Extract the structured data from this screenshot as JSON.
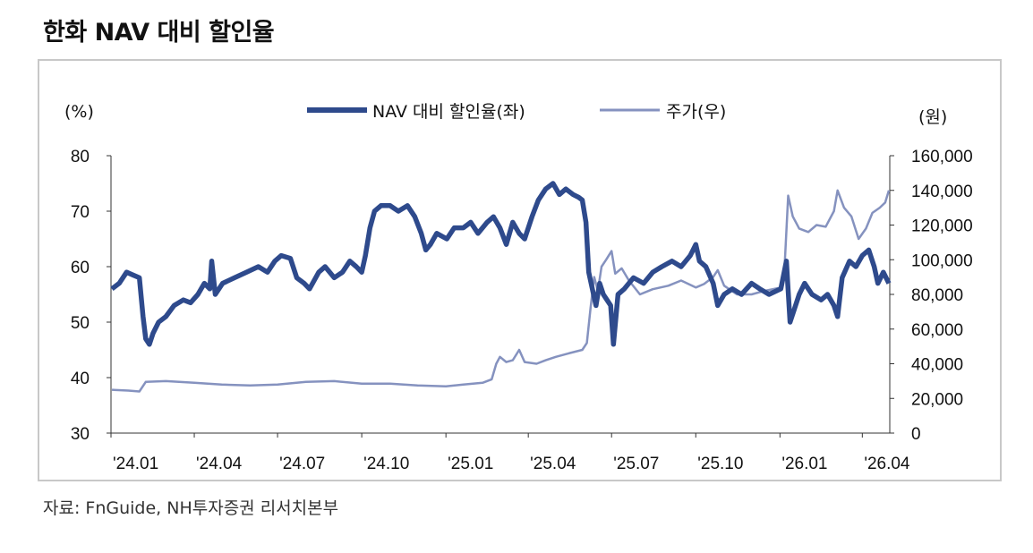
{
  "title": "한화 NAV 대비 할인율",
  "source": "자료: FnGuide, NH투자증권 리서치본부",
  "chart_data": {
    "type": "line",
    "left_axis_unit": "(%)",
    "right_axis_unit": "(원)",
    "left_ylim": [
      30,
      80
    ],
    "right_ylim": [
      0,
      160000
    ],
    "left_ticks": [
      "80",
      "70",
      "60",
      "50",
      "40",
      "30"
    ],
    "right_ticks": [
      "160,000",
      "140,000",
      "120,000",
      "100,000",
      "80,000",
      "60,000",
      "40,000",
      "20,000",
      "0"
    ],
    "x_ticks": [
      "'24.01",
      "'24.04",
      "'24.07",
      "'24.10",
      "'25.01",
      "'25.04",
      "'25.07",
      "'25.10",
      "'26.01",
      "'26.04"
    ],
    "x_range": [
      "2024-01",
      "2026-05"
    ],
    "legend_position": "top-center",
    "colors": {
      "discount": "#2e4a8c",
      "price": "#8592bf"
    },
    "series": [
      {
        "name": "NAV 대비 할인율(좌)",
        "axis": "left",
        "points": [
          [
            "2024-01-02",
            56
          ],
          [
            "2024-01-10",
            57
          ],
          [
            "2024-01-18",
            59
          ],
          [
            "2024-01-25",
            58.5
          ],
          [
            "2024-02-01",
            58
          ],
          [
            "2024-02-05",
            51
          ],
          [
            "2024-02-08",
            47
          ],
          [
            "2024-02-12",
            46
          ],
          [
            "2024-02-16",
            48
          ],
          [
            "2024-02-22",
            50
          ],
          [
            "2024-03-01",
            51
          ],
          [
            "2024-03-10",
            53
          ],
          [
            "2024-03-20",
            54
          ],
          [
            "2024-03-28",
            53.5
          ],
          [
            "2024-04-05",
            55
          ],
          [
            "2024-04-12",
            57
          ],
          [
            "2024-04-18",
            56
          ],
          [
            "2024-04-20",
            61
          ],
          [
            "2024-04-24",
            55
          ],
          [
            "2024-05-02",
            57
          ],
          [
            "2024-05-15",
            58
          ],
          [
            "2024-05-28",
            59
          ],
          [
            "2024-06-10",
            60
          ],
          [
            "2024-06-20",
            59
          ],
          [
            "2024-06-28",
            61
          ],
          [
            "2024-07-05",
            62
          ],
          [
            "2024-07-15",
            61.5
          ],
          [
            "2024-07-22",
            58
          ],
          [
            "2024-07-30",
            57
          ],
          [
            "2024-08-05",
            56
          ],
          [
            "2024-08-15",
            59
          ],
          [
            "2024-08-22",
            60
          ],
          [
            "2024-09-01",
            58
          ],
          [
            "2024-09-10",
            59
          ],
          [
            "2024-09-18",
            61
          ],
          [
            "2024-09-25",
            60
          ],
          [
            "2024-10-01",
            59
          ],
          [
            "2024-10-05",
            62
          ],
          [
            "2024-10-10",
            67
          ],
          [
            "2024-10-15",
            70
          ],
          [
            "2024-10-22",
            71
          ],
          [
            "2024-11-01",
            71
          ],
          [
            "2024-11-10",
            70
          ],
          [
            "2024-11-20",
            71
          ],
          [
            "2024-11-28",
            69
          ],
          [
            "2024-12-05",
            66
          ],
          [
            "2024-12-10",
            63
          ],
          [
            "2024-12-15",
            64
          ],
          [
            "2024-12-22",
            66
          ],
          [
            "2025-01-02",
            65
          ],
          [
            "2025-01-10",
            67
          ],
          [
            "2025-01-20",
            67
          ],
          [
            "2025-01-28",
            68
          ],
          [
            "2025-02-05",
            66
          ],
          [
            "2025-02-15",
            68
          ],
          [
            "2025-02-22",
            69
          ],
          [
            "2025-03-01",
            67
          ],
          [
            "2025-03-08",
            64
          ],
          [
            "2025-03-15",
            68
          ],
          [
            "2025-03-22",
            66
          ],
          [
            "2025-03-28",
            65
          ],
          [
            "2025-04-05",
            69
          ],
          [
            "2025-04-12",
            72
          ],
          [
            "2025-04-20",
            74
          ],
          [
            "2025-04-28",
            75
          ],
          [
            "2025-05-05",
            73
          ],
          [
            "2025-05-12",
            74
          ],
          [
            "2025-05-20",
            73
          ],
          [
            "2025-05-26",
            72.5
          ],
          [
            "2025-05-30",
            72
          ],
          [
            "2025-06-03",
            68
          ],
          [
            "2025-06-06",
            59
          ],
          [
            "2025-06-10",
            56
          ],
          [
            "2025-06-14",
            53
          ],
          [
            "2025-06-18",
            57
          ],
          [
            "2025-06-22",
            55
          ],
          [
            "2025-06-26",
            54
          ],
          [
            "2025-06-30",
            53
          ],
          [
            "2025-07-03",
            46
          ],
          [
            "2025-07-08",
            55
          ],
          [
            "2025-07-15",
            56
          ],
          [
            "2025-07-25",
            58
          ],
          [
            "2025-08-05",
            57
          ],
          [
            "2025-08-15",
            59
          ],
          [
            "2025-08-25",
            60
          ],
          [
            "2025-09-05",
            61
          ],
          [
            "2025-09-15",
            60
          ],
          [
            "2025-09-25",
            62
          ],
          [
            "2025-10-01",
            64
          ],
          [
            "2025-10-05",
            61
          ],
          [
            "2025-10-12",
            60
          ],
          [
            "2025-10-20",
            57
          ],
          [
            "2025-10-25",
            53
          ],
          [
            "2025-11-01",
            55
          ],
          [
            "2025-11-10",
            56
          ],
          [
            "2025-11-20",
            55
          ],
          [
            "2025-12-01",
            57
          ],
          [
            "2025-12-10",
            56
          ],
          [
            "2025-12-20",
            55
          ],
          [
            "2026-01-02",
            56
          ],
          [
            "2026-01-08",
            61
          ],
          [
            "2026-01-12",
            50
          ],
          [
            "2026-01-16",
            52
          ],
          [
            "2026-01-22",
            55
          ],
          [
            "2026-01-28",
            57
          ],
          [
            "2026-02-05",
            55
          ],
          [
            "2026-02-15",
            54
          ],
          [
            "2026-02-22",
            55
          ],
          [
            "2026-03-01",
            53
          ],
          [
            "2026-03-05",
            51
          ],
          [
            "2026-03-10",
            58
          ],
          [
            "2026-03-18",
            61
          ],
          [
            "2026-03-25",
            60
          ],
          [
            "2026-04-01",
            62
          ],
          [
            "2026-04-08",
            63
          ],
          [
            "2026-04-14",
            60
          ],
          [
            "2026-04-18",
            57
          ],
          [
            "2026-04-24",
            59
          ],
          [
            "2026-04-30",
            57
          ]
        ]
      },
      {
        "name": "주가(우)",
        "axis": "right",
        "points": [
          [
            "2024-01-02",
            25000
          ],
          [
            "2024-01-20",
            24500
          ],
          [
            "2024-02-01",
            24000
          ],
          [
            "2024-02-08",
            29500
          ],
          [
            "2024-03-01",
            30000
          ],
          [
            "2024-04-01",
            29000
          ],
          [
            "2024-05-01",
            28000
          ],
          [
            "2024-06-01",
            27500
          ],
          [
            "2024-07-01",
            28000
          ],
          [
            "2024-08-01",
            29500
          ],
          [
            "2024-09-01",
            30000
          ],
          [
            "2024-10-01",
            28500
          ],
          [
            "2024-11-01",
            28500
          ],
          [
            "2024-12-01",
            27500
          ],
          [
            "2025-01-01",
            27000
          ],
          [
            "2025-01-20",
            28000
          ],
          [
            "2025-02-10",
            29000
          ],
          [
            "2025-02-20",
            31000
          ],
          [
            "2025-02-25",
            40000
          ],
          [
            "2025-03-01",
            44000
          ],
          [
            "2025-03-08",
            41000
          ],
          [
            "2025-03-15",
            42000
          ],
          [
            "2025-03-22",
            48000
          ],
          [
            "2025-03-28",
            41000
          ],
          [
            "2025-04-10",
            40000
          ],
          [
            "2025-04-20",
            42000
          ],
          [
            "2025-05-01",
            44000
          ],
          [
            "2025-05-15",
            46000
          ],
          [
            "2025-05-30",
            48000
          ],
          [
            "2025-06-04",
            52000
          ],
          [
            "2025-06-08",
            72000
          ],
          [
            "2025-06-12",
            90000
          ],
          [
            "2025-06-16",
            82000
          ],
          [
            "2025-06-20",
            96000
          ],
          [
            "2025-06-25",
            100000
          ],
          [
            "2025-07-01",
            105000
          ],
          [
            "2025-07-05",
            92000
          ],
          [
            "2025-07-12",
            95000
          ],
          [
            "2025-07-20",
            88000
          ],
          [
            "2025-08-01",
            80000
          ],
          [
            "2025-08-15",
            83000
          ],
          [
            "2025-09-01",
            85000
          ],
          [
            "2025-09-15",
            88000
          ],
          [
            "2025-10-01",
            84000
          ],
          [
            "2025-10-10",
            86000
          ],
          [
            "2025-10-20",
            90000
          ],
          [
            "2025-10-25",
            94000
          ],
          [
            "2025-11-01",
            85000
          ],
          [
            "2025-11-15",
            80000
          ],
          [
            "2025-12-01",
            80000
          ],
          [
            "2025-12-15",
            82000
          ],
          [
            "2026-01-02",
            84000
          ],
          [
            "2026-01-06",
            95000
          ],
          [
            "2026-01-10",
            137000
          ],
          [
            "2026-01-15",
            125000
          ],
          [
            "2026-01-22",
            118000
          ],
          [
            "2026-02-01",
            116000
          ],
          [
            "2026-02-10",
            120000
          ],
          [
            "2026-02-20",
            119000
          ],
          [
            "2026-03-01",
            128000
          ],
          [
            "2026-03-05",
            140000
          ],
          [
            "2026-03-12",
            130000
          ],
          [
            "2026-03-20",
            125000
          ],
          [
            "2026-03-28",
            112000
          ],
          [
            "2026-04-05",
            118000
          ],
          [
            "2026-04-12",
            127000
          ],
          [
            "2026-04-20",
            130000
          ],
          [
            "2026-04-26",
            133000
          ],
          [
            "2026-04-30",
            140000
          ]
        ]
      }
    ]
  }
}
